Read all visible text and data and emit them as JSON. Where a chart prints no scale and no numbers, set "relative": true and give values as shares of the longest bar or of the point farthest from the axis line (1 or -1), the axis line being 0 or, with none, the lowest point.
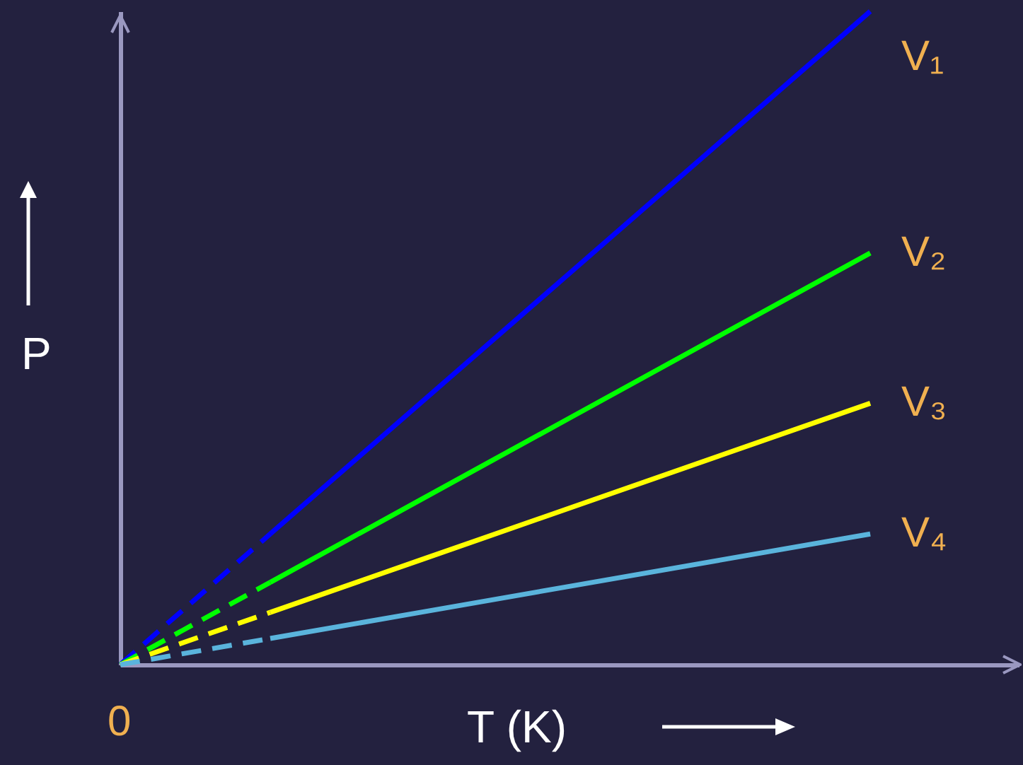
{
  "chart_data": {
    "type": "line",
    "relative": true,
    "xlabel": "T (K)",
    "ylabel": "P",
    "annotations": [
      "0"
    ],
    "marker": "none",
    "categories": [
      null,
      null,
      null,
      null,
      null,
      null
    ],
    "series": [
      {
        "name": "V₁",
        "color": "#0000ff",
        "values": [
          null,
          0.2,
          0.4,
          0.6,
          0.8,
          1
        ],
        "line_style": "solid"
      },
      {
        "name": "V₂",
        "color": "#00ff00",
        "values": [
          null,
          0.126,
          0.252,
          0.378,
          0.504,
          0.63
        ],
        "line_style": "solid"
      },
      {
        "name": "V₃",
        "color": "#ffff00",
        "values": [
          null,
          0.08,
          0.16,
          0.24,
          0.32,
          0.4
        ],
        "line_style": "solid"
      },
      {
        "name": "V₄",
        "color": "#5ab4dc",
        "values": [
          null,
          0.04,
          0.08,
          0.12,
          0.16,
          0.2
        ],
        "line_style": "solid"
      },
      {
        "color": "#0000ff",
        "values": [
          0,
          0.2,
          null,
          null,
          null,
          null
        ],
        "line_style": "dashed"
      },
      {
        "color": "#00ff00",
        "values": [
          0,
          0.126,
          null,
          null,
          null,
          null
        ],
        "line_style": "dashed"
      },
      {
        "color": "#ffff00",
        "values": [
          0,
          0.08,
          null,
          null,
          null,
          null
        ],
        "line_style": "dashed"
      },
      {
        "color": "#5ab4dc",
        "values": [
          0,
          0.04,
          null,
          null,
          null,
          null
        ],
        "line_style": "dashed"
      }
    ]
  }
}
